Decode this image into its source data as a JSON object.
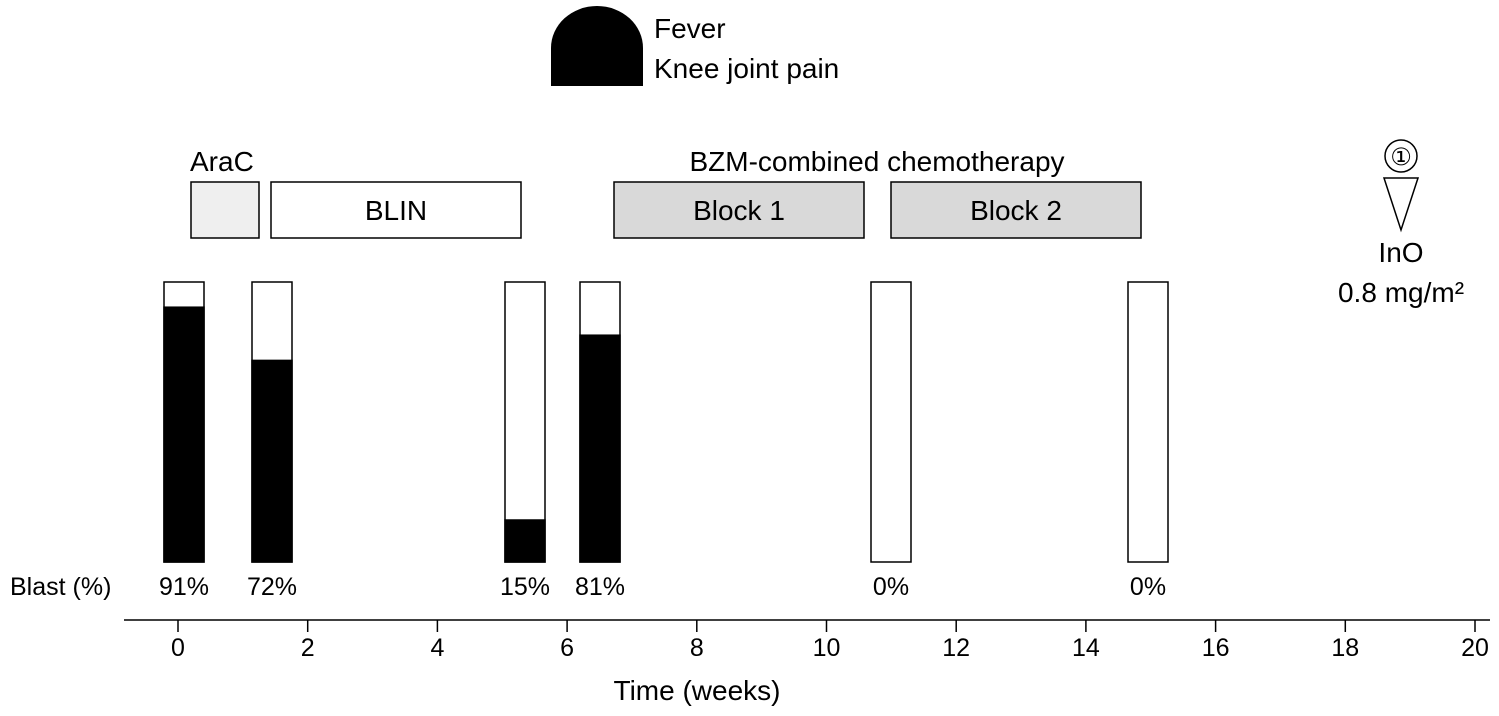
{
  "symptom_legend": {
    "lines": [
      "Fever",
      "Knee joint pain"
    ],
    "color": "#000000"
  },
  "treatments": {
    "arac": {
      "label": "AraC",
      "fill": "#efefef",
      "start_weeks": 0.2,
      "end_weeks": 1.25
    },
    "blin": {
      "label": "BLIN",
      "fill": "#ffffff",
      "start_weeks": 1.4,
      "end_weeks": 5.25
    },
    "bzm_header": "BZM-combined chemotherapy",
    "block1": {
      "label": "Block 1",
      "fill": "#d9d9d9",
      "start_weeks": 6.7,
      "end_weeks": 10.55
    },
    "block2": {
      "label": "Block 2",
      "fill": "#d9d9d9",
      "start_weeks": 10.95,
      "end_weeks": 14.8
    }
  },
  "ino_event": {
    "number_label": "①",
    "drug": "InO",
    "dose": "0.8 mg/m²",
    "week": 18.85
  },
  "blast_label": "Blast (%)",
  "blast_measurements": [
    {
      "week": 0.1,
      "percent": 91,
      "label": "91%"
    },
    {
      "week": 1.45,
      "percent": 72,
      "label": "72%"
    },
    {
      "week": 5.35,
      "percent": 15,
      "label": "15%"
    },
    {
      "week": 6.5,
      "percent": 81,
      "label": "81%"
    },
    {
      "week": 11.0,
      "percent": 0,
      "label": "0%"
    },
    {
      "week": 14.95,
      "percent": 0,
      "label": "0%"
    }
  ],
  "axis": {
    "title": "Time (weeks)",
    "range": [
      0,
      20
    ],
    "ticks": [
      0,
      2,
      4,
      6,
      8,
      10,
      12,
      14,
      16,
      18,
      20
    ],
    "tick_labels": [
      "0",
      "2",
      "4",
      "6",
      "8",
      "10",
      "12",
      "14",
      "16",
      "18",
      "20"
    ]
  }
}
